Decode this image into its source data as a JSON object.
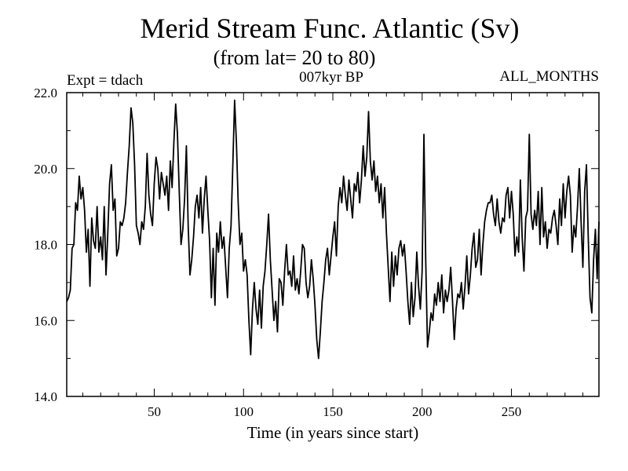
{
  "chart_data": {
    "type": "line",
    "title": "Merid Stream Func. Atlantic (Sv)",
    "subtitle": "(from lat= 20 to 80)",
    "annotations": {
      "experiment": "Expt = tdach",
      "period": "007kyr BP",
      "months": "ALL_MONTHS"
    },
    "xlabel": "Time (in years since start)",
    "ylabel": "",
    "xlim": [
      1,
      299
    ],
    "ylim": [
      14.0,
      22.0
    ],
    "x_ticks": [
      50,
      100,
      150,
      200,
      250
    ],
    "x_tick_labels": [
      "50",
      "100",
      "150",
      "200",
      "250"
    ],
    "y_ticks": [
      14.0,
      16.0,
      18.0,
      20.0,
      22.0
    ],
    "y_tick_labels": [
      "14.0",
      "16.0",
      "18.0",
      "20.0",
      "22.0"
    ],
    "grid": false,
    "series": [
      {
        "name": "Merid Stream Func. Atlantic",
        "x_start": 1,
        "x_step": 1,
        "values": [
          16.5,
          16.6,
          16.8,
          17.9,
          18.0,
          19.1,
          18.9,
          19.8,
          19.2,
          19.5,
          18.9,
          17.8,
          18.4,
          16.9,
          18.7,
          18.1,
          17.9,
          19.0,
          17.8,
          18.2,
          17.6,
          19.0,
          17.2,
          18.3,
          19.6,
          20.1,
          18.9,
          19.2,
          17.7,
          17.9,
          18.6,
          18.5,
          18.7,
          19.1,
          19.9,
          20.6,
          21.6,
          21.2,
          20.1,
          18.5,
          18.3,
          18.0,
          18.6,
          18.4,
          19.0,
          20.4,
          19.3,
          18.8,
          18.5,
          19.6,
          20.3,
          20.0,
          19.2,
          19.9,
          19.6,
          19.3,
          19.8,
          18.9,
          20.2,
          19.5,
          20.7,
          21.7,
          20.9,
          19.4,
          18.0,
          18.4,
          19.2,
          20.6,
          18.5,
          17.2,
          17.6,
          18.2,
          19.0,
          19.3,
          18.7,
          19.5,
          18.3,
          19.2,
          19.8,
          18.9,
          18.1,
          16.6,
          17.9,
          16.4,
          18.3,
          17.8,
          18.6,
          17.9,
          18.2,
          17.4,
          16.6,
          17.9,
          18.5,
          20.1,
          21.8,
          20.7,
          19.1,
          18.0,
          18.3,
          17.3,
          17.6,
          17.2,
          16.0,
          15.1,
          16.3,
          17.0,
          16.3,
          15.9,
          16.8,
          15.8,
          16.9,
          17.3,
          18.0,
          18.8,
          17.6,
          16.8,
          16.0,
          16.5,
          15.7,
          17.1,
          17.0,
          16.4,
          17.3,
          18.0,
          17.2,
          17.3,
          16.9,
          17.7,
          16.8,
          17.1,
          16.7,
          17.3,
          18.0,
          17.9,
          17.0,
          16.6,
          16.9,
          17.6,
          17.1,
          16.4,
          15.5,
          15.0,
          15.7,
          16.5,
          17.0,
          17.6,
          17.9,
          17.2,
          17.7,
          18.2,
          18.6,
          17.7,
          19.0,
          19.5,
          19.1,
          19.8,
          19.3,
          18.9,
          19.7,
          19.2,
          18.7,
          19.6,
          19.4,
          19.9,
          19.1,
          19.7,
          20.6,
          19.8,
          20.3,
          21.5,
          20.2,
          19.7,
          20.2,
          19.4,
          19.8,
          19.1,
          19.6,
          18.7,
          19.5,
          18.3,
          17.4,
          16.5,
          17.8,
          16.9,
          17.7,
          17.2,
          17.9,
          18.1,
          17.7,
          18.0,
          17.3,
          16.5,
          15.9,
          17.0,
          16.1,
          16.6,
          17.8,
          16.9,
          16.3,
          17.3,
          20.9,
          17.6,
          15.3,
          15.7,
          16.2,
          16.0,
          16.7,
          16.4,
          17.0,
          16.5,
          17.2,
          16.2,
          16.8,
          16.5,
          16.8,
          17.4,
          16.5,
          15.5,
          16.3,
          16.7,
          16.6,
          17.0,
          16.3,
          16.9,
          17.7,
          16.7,
          17.2,
          17.9,
          18.3,
          17.4,
          17.6,
          18.4,
          17.2,
          18.0,
          18.6,
          18.9,
          19.1,
          19.1,
          19.3,
          18.8,
          18.5,
          19.2,
          18.6,
          18.3,
          18.7,
          18.6,
          19.3,
          19.5,
          18.7,
          19.4,
          18.8,
          17.7,
          18.2,
          17.8,
          19.7,
          18.2,
          17.3,
          18.7,
          18.9,
          20.9,
          18.8,
          18.4,
          18.9,
          18.5,
          19.4,
          18.0,
          19.5,
          18.2,
          18.6,
          17.9,
          18.4,
          18.3,
          18.7,
          18.9,
          18.5,
          18.0,
          19.2,
          18.5,
          19.6,
          18.7,
          19.4,
          19.8,
          19.3,
          17.8,
          18.5,
          18.2,
          19.0,
          20.0,
          18.6,
          17.4,
          19.4,
          20.1,
          18.2,
          16.6,
          16.2,
          17.6,
          18.4,
          17.1,
          18.6
        ]
      }
    ]
  }
}
